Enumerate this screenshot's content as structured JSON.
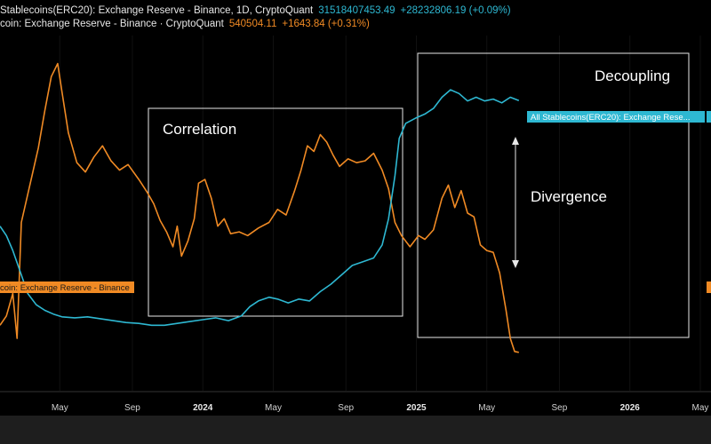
{
  "legend": {
    "stable": {
      "name": "Stablecoins(ERC20): Exchange Reserve - Binance, 1D, CryptoQuant",
      "value": "31518407453.49",
      "change": "+28232806.19 (+0.09%)",
      "color": "#2eb8d2"
    },
    "btc": {
      "name": "coin: Exchange Reserve - Binance · CryptoQuant",
      "value": "540504.11",
      "change": "+1643.84 (+0.31%)",
      "color": "#f08a24"
    }
  },
  "chart_data": {
    "type": "line",
    "x_ticks": [
      {
        "label": "May",
        "t": 2023.33,
        "bold": false
      },
      {
        "label": "Sep",
        "t": 2023.67,
        "bold": false
      },
      {
        "label": "2024",
        "t": 2024.0,
        "bold": true
      },
      {
        "label": "May",
        "t": 2024.33,
        "bold": false
      },
      {
        "label": "Sep",
        "t": 2024.67,
        "bold": false
      },
      {
        "label": "2025",
        "t": 2025.0,
        "bold": true
      },
      {
        "label": "May",
        "t": 2025.33,
        "bold": false
      },
      {
        "label": "Sep",
        "t": 2025.67,
        "bold": false
      },
      {
        "label": "2026",
        "t": 2026.0,
        "bold": true
      },
      {
        "label": "May",
        "t": 2026.33,
        "bold": false
      }
    ],
    "x_range": [
      2023.05,
      2026.38
    ],
    "series": [
      {
        "key": "btc",
        "color": "#f08a24",
        "axis_range": [
          520000,
          710000
        ],
        "points": [
          [
            2023.05,
            555000
          ],
          [
            2023.08,
            560000
          ],
          [
            2023.11,
            572000
          ],
          [
            2023.13,
            548000
          ],
          [
            2023.15,
            610000
          ],
          [
            2023.18,
            625000
          ],
          [
            2023.2,
            635000
          ],
          [
            2023.23,
            650000
          ],
          [
            2023.26,
            670000
          ],
          [
            2023.29,
            688000
          ],
          [
            2023.32,
            695000
          ],
          [
            2023.34,
            680000
          ],
          [
            2023.37,
            658000
          ],
          [
            2023.41,
            642000
          ],
          [
            2023.45,
            637000
          ],
          [
            2023.49,
            645000
          ],
          [
            2023.53,
            651000
          ],
          [
            2023.57,
            643000
          ],
          [
            2023.61,
            638000
          ],
          [
            2023.65,
            641000
          ],
          [
            2023.7,
            633000
          ],
          [
            2023.74,
            626000
          ],
          [
            2023.77,
            620000
          ],
          [
            2023.8,
            611000
          ],
          [
            2023.83,
            605000
          ],
          [
            2023.86,
            597000
          ],
          [
            2023.88,
            608000
          ],
          [
            2023.9,
            592000
          ],
          [
            2023.93,
            600000
          ],
          [
            2023.96,
            612000
          ],
          [
            2023.98,
            631000
          ],
          [
            2024.01,
            633000
          ],
          [
            2024.04,
            623000
          ],
          [
            2024.07,
            608000
          ],
          [
            2024.1,
            612000
          ],
          [
            2024.13,
            604000
          ],
          [
            2024.17,
            605000
          ],
          [
            2024.21,
            603000
          ],
          [
            2024.26,
            607000
          ],
          [
            2024.31,
            610000
          ],
          [
            2024.35,
            617000
          ],
          [
            2024.39,
            614000
          ],
          [
            2024.43,
            627000
          ],
          [
            2024.46,
            638000
          ],
          [
            2024.49,
            651000
          ],
          [
            2024.52,
            648000
          ],
          [
            2024.55,
            657000
          ],
          [
            2024.58,
            653000
          ],
          [
            2024.61,
            646000
          ],
          [
            2024.64,
            640000
          ],
          [
            2024.68,
            644000
          ],
          [
            2024.72,
            642000
          ],
          [
            2024.76,
            643000
          ],
          [
            2024.8,
            647000
          ],
          [
            2024.84,
            638000
          ],
          [
            2024.87,
            628000
          ],
          [
            2024.9,
            610000
          ],
          [
            2024.93,
            603000
          ],
          [
            2024.97,
            597000
          ],
          [
            2025.01,
            603000
          ],
          [
            2025.04,
            601000
          ],
          [
            2025.08,
            606000
          ],
          [
            2025.12,
            623000
          ],
          [
            2025.15,
            630000
          ],
          [
            2025.18,
            618000
          ],
          [
            2025.21,
            627000
          ],
          [
            2025.24,
            615000
          ],
          [
            2025.27,
            613000
          ],
          [
            2025.3,
            598000
          ],
          [
            2025.33,
            595000
          ],
          [
            2025.36,
            594000
          ],
          [
            2025.39,
            583000
          ],
          [
            2025.42,
            563000
          ],
          [
            2025.44,
            548000
          ],
          [
            2025.46,
            541000
          ],
          [
            2025.48,
            540504
          ]
        ]
      },
      {
        "key": "stable",
        "color": "#2eb8d2",
        "axis_range": [
          16000000000,
          35000000000
        ],
        "points": [
          [
            2023.05,
            24800000000
          ],
          [
            2023.08,
            24300000000
          ],
          [
            2023.11,
            23500000000
          ],
          [
            2023.15,
            22200000000
          ],
          [
            2023.18,
            21200000000
          ],
          [
            2023.22,
            20600000000
          ],
          [
            2023.26,
            20300000000
          ],
          [
            2023.3,
            20100000000
          ],
          [
            2023.34,
            19950000000
          ],
          [
            2023.4,
            19900000000
          ],
          [
            2023.46,
            19950000000
          ],
          [
            2023.52,
            19850000000
          ],
          [
            2023.58,
            19750000000
          ],
          [
            2023.64,
            19650000000
          ],
          [
            2023.7,
            19600000000
          ],
          [
            2023.76,
            19500000000
          ],
          [
            2023.82,
            19500000000
          ],
          [
            2023.88,
            19600000000
          ],
          [
            2023.94,
            19700000000
          ],
          [
            2024.0,
            19800000000
          ],
          [
            2024.06,
            19900000000
          ],
          [
            2024.12,
            19750000000
          ],
          [
            2024.18,
            20000000000
          ],
          [
            2024.22,
            20500000000
          ],
          [
            2024.26,
            20800000000
          ],
          [
            2024.31,
            21000000000
          ],
          [
            2024.35,
            20900000000
          ],
          [
            2024.4,
            20700000000
          ],
          [
            2024.45,
            20900000000
          ],
          [
            2024.5,
            20800000000
          ],
          [
            2024.55,
            21300000000
          ],
          [
            2024.6,
            21700000000
          ],
          [
            2024.65,
            22200000000
          ],
          [
            2024.7,
            22700000000
          ],
          [
            2024.75,
            22900000000
          ],
          [
            2024.8,
            23100000000
          ],
          [
            2024.84,
            23800000000
          ],
          [
            2024.87,
            25200000000
          ],
          [
            2024.9,
            27500000000
          ],
          [
            2024.92,
            29500000000
          ],
          [
            2024.95,
            30300000000
          ],
          [
            2025.0,
            30600000000
          ],
          [
            2025.04,
            30800000000
          ],
          [
            2025.08,
            31100000000
          ],
          [
            2025.12,
            31700000000
          ],
          [
            2025.16,
            32100000000
          ],
          [
            2025.2,
            31900000000
          ],
          [
            2025.24,
            31500000000
          ],
          [
            2025.28,
            31700000000
          ],
          [
            2025.32,
            31500000000
          ],
          [
            2025.36,
            31600000000
          ],
          [
            2025.4,
            31400000000
          ],
          [
            2025.44,
            31700000000
          ],
          [
            2025.48,
            31518407453
          ]
        ]
      }
    ]
  },
  "annotations": {
    "correlation": "Correlation",
    "decoupling": "Decoupling",
    "divergence": "Divergence"
  },
  "price_tags": {
    "stable": "All Stablecoins(ERC20): Exchange Rese...",
    "btc": "coin: Exchange Reserve - Binance"
  }
}
